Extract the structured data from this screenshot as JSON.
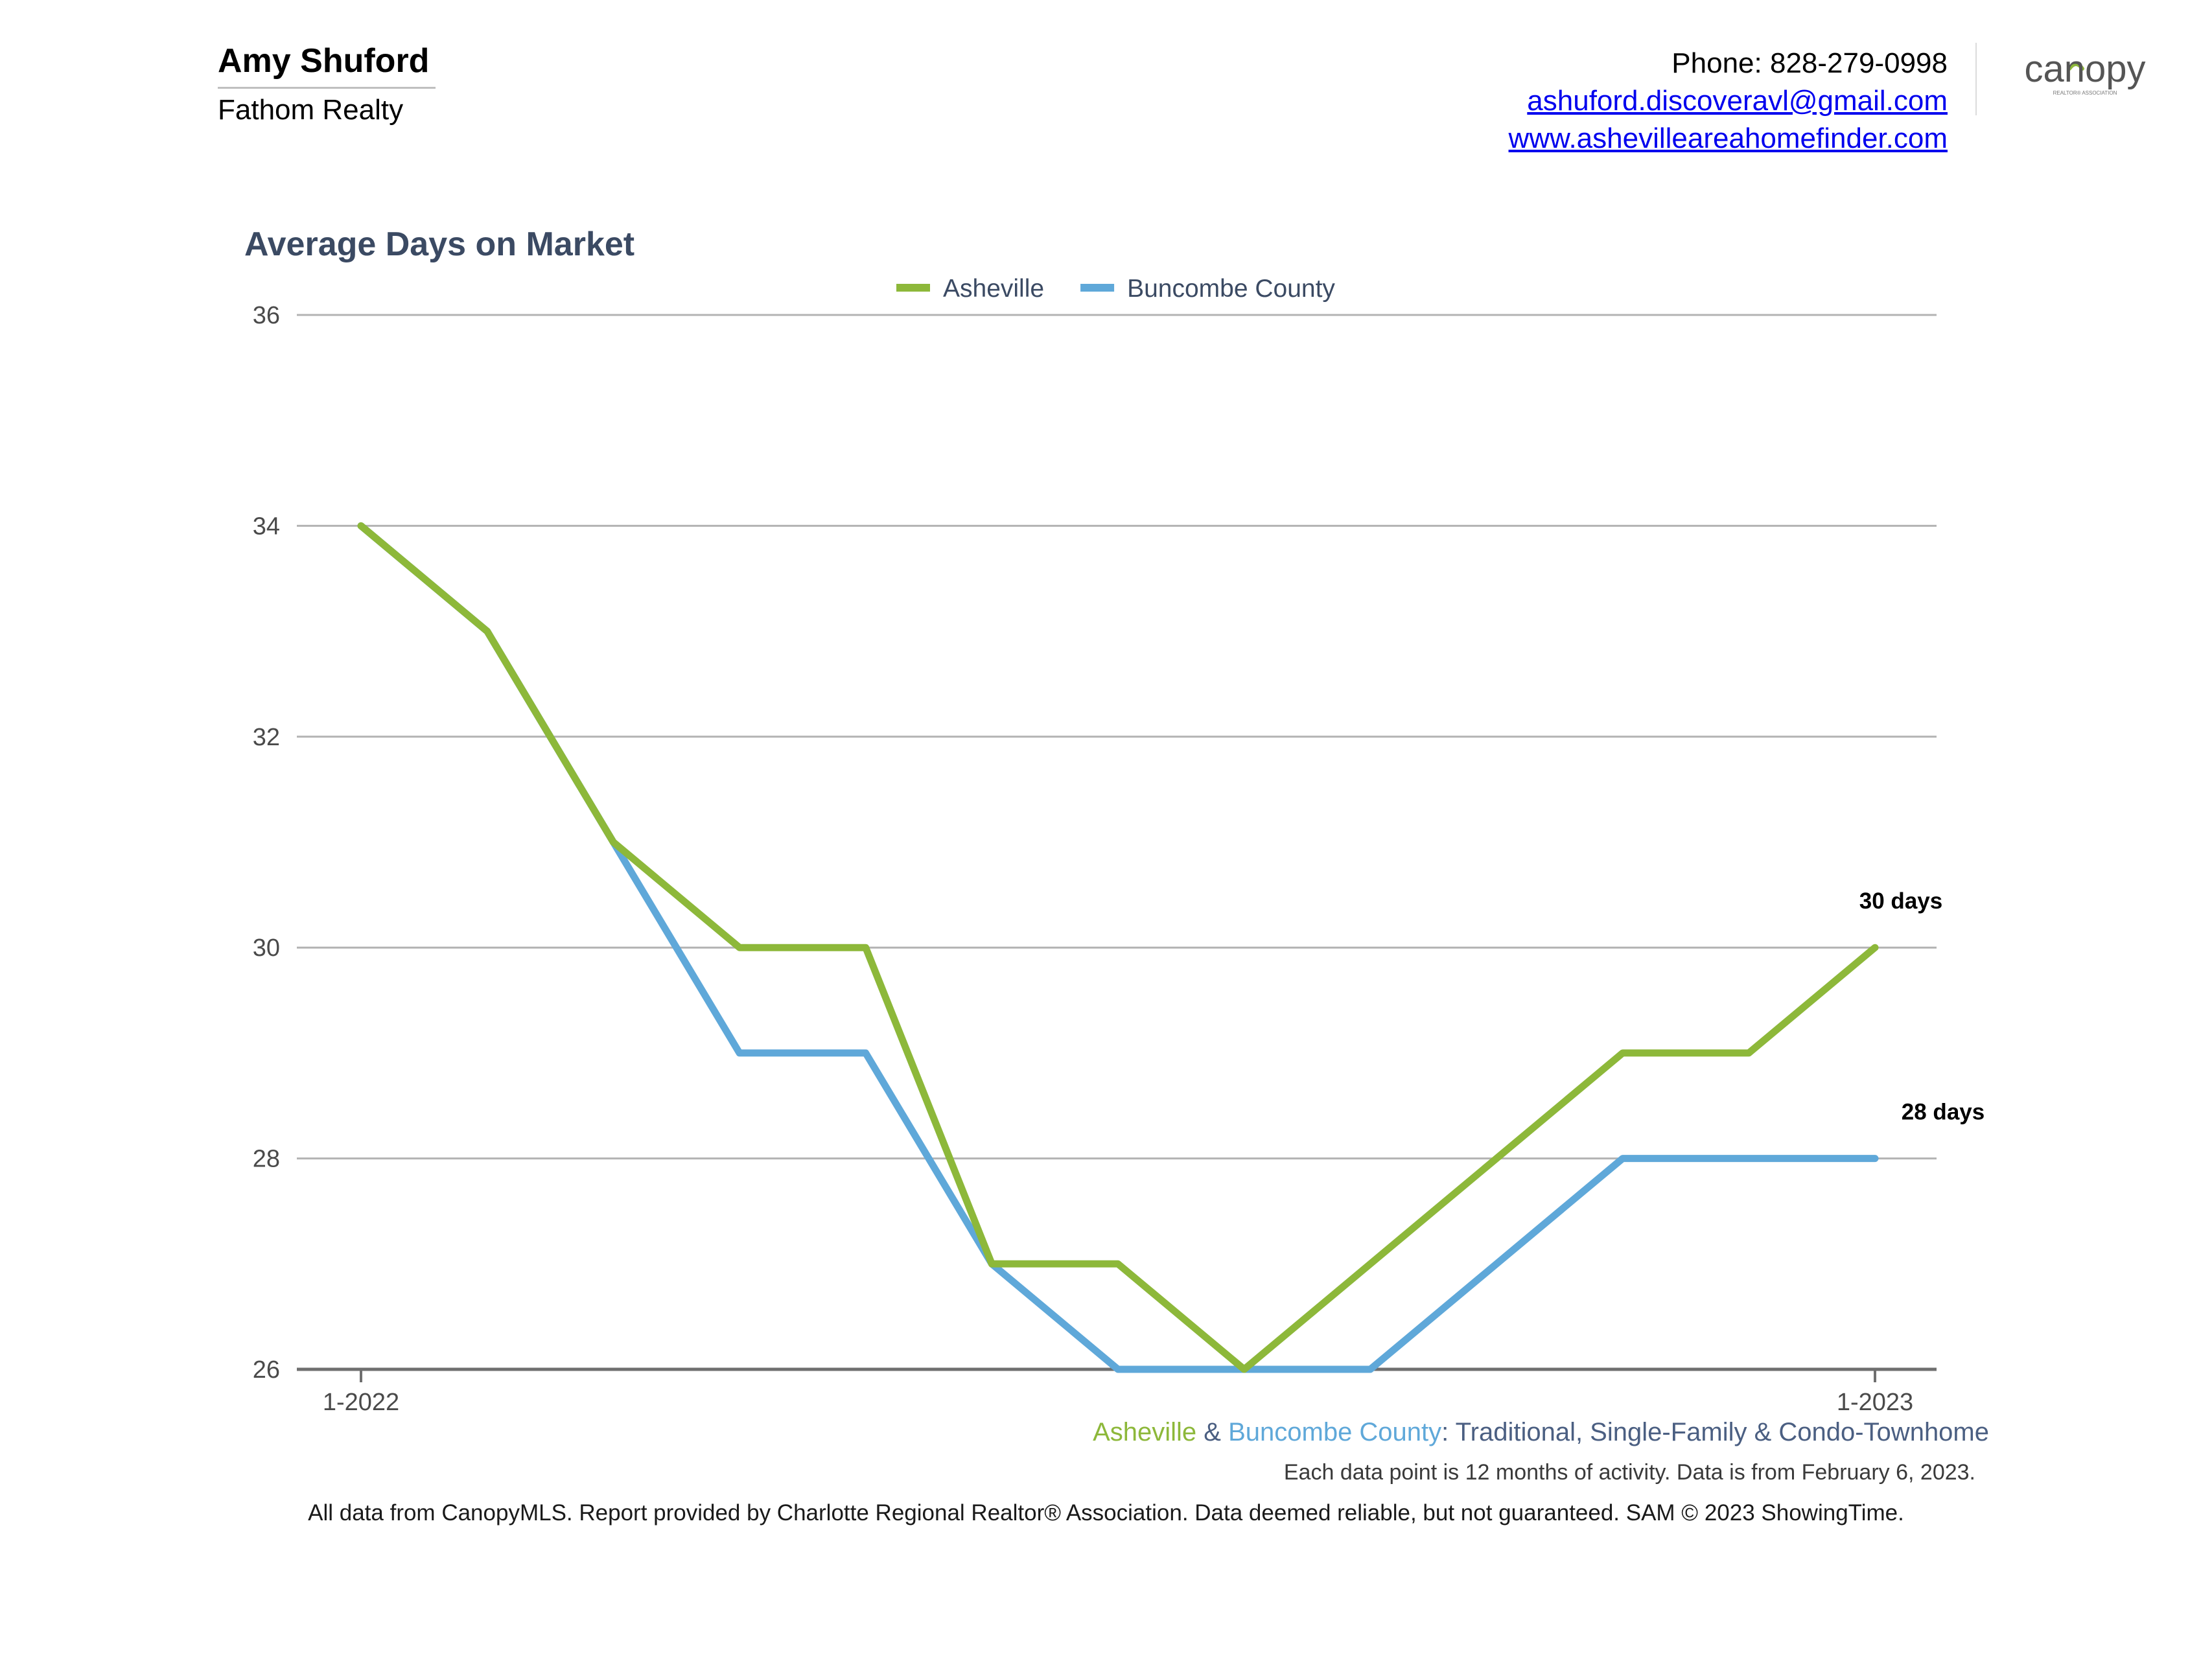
{
  "agent": {
    "name": "Amy Shuford",
    "company": "Fathom Realty",
    "phone": "Phone: 828-279-0998",
    "email": "ashuford.discoveravl@gmail.com",
    "website": "www.ashevilleareahomefinder.com"
  },
  "logo": {
    "wordmark": "canopy",
    "tagline": "REALTOR® ASSOCIATION"
  },
  "chart_data": {
    "type": "line",
    "title": "Average Days on Market",
    "xlabel": "",
    "ylabel": "",
    "x": [
      "1-2022",
      "2-2022",
      "3-2022",
      "4-2022",
      "5-2022",
      "6-2022",
      "7-2022",
      "8-2022",
      "9-2022",
      "10-2022",
      "11-2022",
      "12-2022",
      "1-2023"
    ],
    "x_tick_labels": [
      "1-2022",
      "1-2023"
    ],
    "ylim": [
      26,
      36
    ],
    "y_ticks": [
      26,
      28,
      30,
      32,
      34,
      36
    ],
    "grid": true,
    "legend": "top-center",
    "series": [
      {
        "name": "Asheville",
        "color": "#8db83a",
        "values": [
          34,
          33,
          31,
          30,
          30,
          27,
          27,
          26,
          27,
          28,
          29,
          29,
          30
        ],
        "end_label": "30 days"
      },
      {
        "name": "Buncombe County",
        "color": "#5fa8d9",
        "values": [
          34,
          33,
          31,
          29,
          29,
          27,
          26,
          26,
          26,
          27,
          28,
          28,
          28
        ],
        "end_label": "28 days"
      }
    ]
  },
  "caption": {
    "series_a": "Asheville",
    "joiner": " & ",
    "series_b": "Buncombe County",
    "rest": ": Traditional, Single-Family & Condo-Townhome",
    "colors": {
      "series_a": "#8db83a",
      "series_b": "#5fa8d9",
      "text": "#4b5f82"
    }
  },
  "note": "Each data point is 12 months of activity. Data is from February 6, 2023.",
  "footer": "All data from CanopyMLS. Report provided by Charlotte Regional Realtor® Association. Data deemed reliable, but not guaranteed. SAM © 2023 ShowingTime."
}
